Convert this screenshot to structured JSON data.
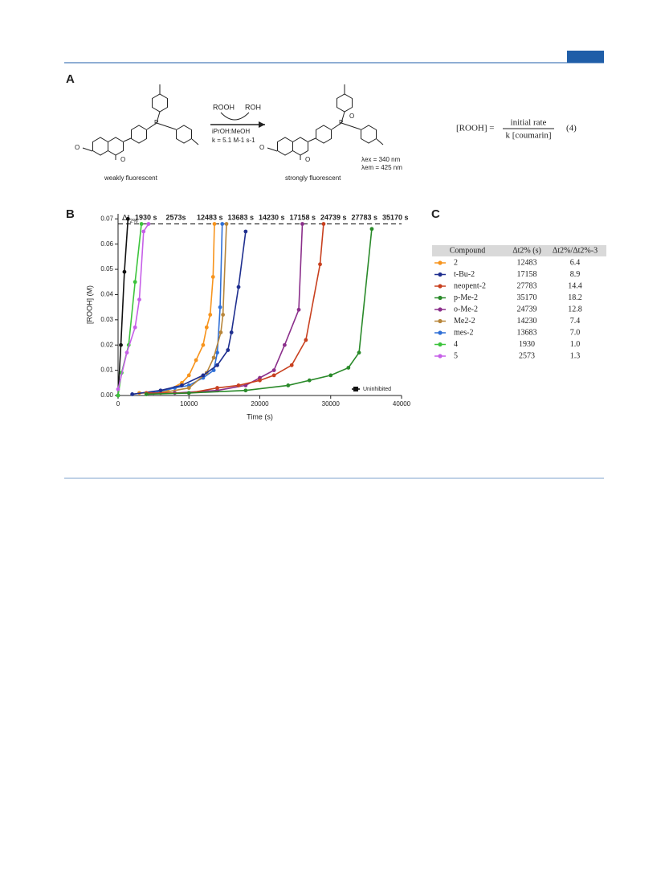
{
  "panel_labels": {
    "a": "A",
    "b": "B",
    "c": "C"
  },
  "scheme": {
    "reagent_in": "ROOH",
    "reagent_out": "ROH",
    "solvent": "iPrOH:MeOH",
    "rate": "k = 5.1 M-1 s-1",
    "left_caption": "weakly fluorescent",
    "right_caption": "strongly fluorescent",
    "lambda_ex": "λex = 340 nm",
    "lambda_em": "λem = 425 nm"
  },
  "equation": {
    "lhs": "[ROOH] =",
    "numerator": "initial rate",
    "denominator": "k [coumarin]",
    "number": "(4)"
  },
  "chart_data": {
    "type": "line",
    "x_label": "Time (s)",
    "y_label": "[ROOH] (M)",
    "xlim": [
      0,
      40000
    ],
    "xticks": [
      0,
      10000,
      20000,
      30000,
      40000
    ],
    "ylim": [
      0,
      0.072
    ],
    "yticks": [
      {
        "value": 0,
        "label": "0.00"
      },
      0.01,
      0.02,
      0.03,
      0.04,
      0.05,
      0.06,
      0.07
    ],
    "threshold": 0.068,
    "threshold_label": "Δt",
    "threshold_sub": "2%",
    "annotations": [
      {
        "text": "1930 s",
        "color": "#3cc43c"
      },
      {
        "text": "2573s",
        "color": "#c65fe8"
      },
      {
        "text": "12483 s",
        "color": "#f7941d"
      },
      {
        "text": "13683 s",
        "color": "#2f6fd6"
      },
      {
        "text": "14230 s",
        "color": "#b8863b"
      },
      {
        "text": "17158 s",
        "color": "#1f2f8f"
      },
      {
        "text": "24739 s",
        "color": "#8b2f8b"
      },
      {
        "text": "27783 s",
        "color": "#c8401f"
      },
      {
        "text": "35170 s",
        "color": "#2a8a2a"
      }
    ],
    "legend": "lower right",
    "series": [
      {
        "name": "Uninhibited",
        "color": "#111111",
        "x": [
          0,
          400,
          900,
          1400
        ],
        "values": [
          0,
          0.02,
          0.049,
          0.07
        ]
      },
      {
        "color": "#3cc43c",
        "x": [
          0,
          500,
          1500,
          2400,
          3300
        ],
        "values": [
          0,
          0.009,
          0.02,
          0.045,
          0.068
        ]
      },
      {
        "color": "#c65fe8",
        "x": [
          0,
          1250,
          2400,
          3000,
          3600,
          4300
        ],
        "values": [
          0.0025,
          0.017,
          0.027,
          0.038,
          0.065,
          0.068
        ]
      },
      {
        "color": "#f7941d",
        "x": [
          3000,
          5000,
          7000,
          9000,
          10000,
          11000,
          12000,
          12500,
          13000,
          13400,
          13600
        ],
        "values": [
          0.001,
          0.001,
          0.002,
          0.005,
          0.008,
          0.014,
          0.02,
          0.027,
          0.032,
          0.047,
          0.068
        ]
      },
      {
        "color": "#2f6fd6",
        "x": [
          5000,
          8000,
          10000,
          12000,
          13500,
          14000,
          14400,
          14700
        ],
        "values": [
          0.001,
          0.003,
          0.004,
          0.007,
          0.01,
          0.017,
          0.035,
          0.068
        ]
      },
      {
        "color": "#b8863b",
        "x": [
          6000,
          10000,
          12500,
          13500,
          14500,
          14800,
          15300
        ],
        "values": [
          0.001,
          0.003,
          0.009,
          0.015,
          0.025,
          0.032,
          0.068
        ]
      },
      {
        "color": "#1f2f8f",
        "x": [
          2000,
          6000,
          9000,
          12000,
          14000,
          15500,
          16000,
          17000,
          18000
        ],
        "values": [
          0.0005,
          0.002,
          0.004,
          0.008,
          0.012,
          0.018,
          0.025,
          0.043,
          0.065
        ]
      },
      {
        "color": "#8b2f8b",
        "x": [
          8000,
          14000,
          18000,
          20000,
          22000,
          23500,
          25500,
          26000
        ],
        "values": [
          0.001,
          0.002,
          0.004,
          0.007,
          0.01,
          0.02,
          0.034,
          0.068
        ]
      },
      {
        "color": "#c8401f",
        "x": [
          4000,
          10000,
          14000,
          17000,
          20000,
          22000,
          24500,
          26500,
          28500,
          29000
        ],
        "values": [
          0.001,
          0.001,
          0.003,
          0.004,
          0.006,
          0.008,
          0.012,
          0.022,
          0.052,
          0.068
        ]
      },
      {
        "color": "#2a8a2a",
        "x": [
          4000,
          10000,
          18000,
          24000,
          27000,
          30000,
          32500,
          34000,
          35800
        ],
        "values": [
          0.0005,
          0.001,
          0.002,
          0.004,
          0.006,
          0.008,
          0.011,
          0.017,
          0.066
        ]
      }
    ]
  },
  "table": {
    "header": [
      "Compound",
      "Δt2% (s)",
      "Δt2%/Δt2%-3"
    ],
    "rows": [
      {
        "color": "#f7941d",
        "cells": [
          "2",
          "12483",
          "6.4"
        ]
      },
      {
        "color": "#1f2f8f",
        "cells": [
          "t-Bu-2",
          "17158",
          "8.9"
        ]
      },
      {
        "color": "#c8401f",
        "cells": [
          "neopent-2",
          "27783",
          "14.4"
        ]
      },
      {
        "color": "#2a8a2a",
        "cells": [
          "p-Me-2",
          "35170",
          "18.2"
        ]
      },
      {
        "color": "#8b2f8b",
        "cells": [
          "o-Me-2",
          "24739",
          "12.8"
        ]
      },
      {
        "color": "#b8863b",
        "cells": [
          "Me2-2",
          "14230",
          "7.4"
        ]
      },
      {
        "color": "#2f6fd6",
        "cells": [
          "mes-2",
          "13683",
          "7.0"
        ]
      },
      {
        "color": "#3cc43c",
        "cells": [
          "4",
          "1930",
          "1.0"
        ]
      },
      {
        "color": "#c65fe8",
        "cells": [
          "5",
          "2573",
          "1.3"
        ]
      }
    ]
  }
}
